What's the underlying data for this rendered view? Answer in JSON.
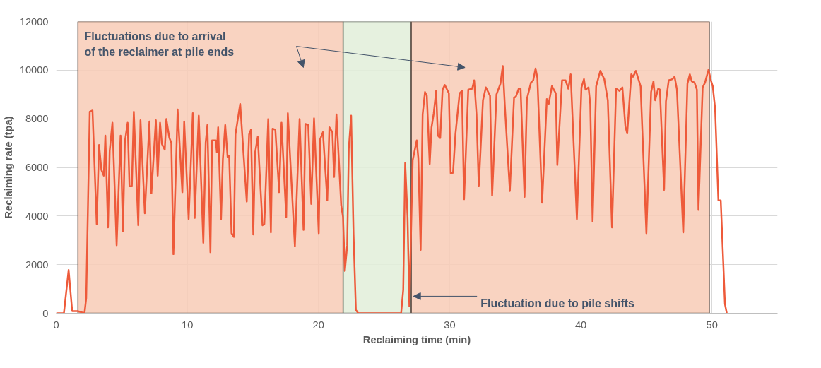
{
  "chart_data": {
    "type": "line",
    "xlabel": "Reclaiming time (min)",
    "ylabel": "Reclaiming rate (tpa)",
    "xlim": [
      0,
      55
    ],
    "xticks": [
      0,
      10,
      20,
      30,
      40,
      50
    ],
    "ylim": [
      0,
      12000
    ],
    "yticks": [
      0,
      2000,
      4000,
      6000,
      8000,
      10000,
      12000
    ],
    "grid": true,
    "line_style": "solid",
    "bands": [
      {
        "axis": "x",
        "from": 1.66,
        "to": 21.88,
        "color": "#f8cbb6"
      },
      {
        "axis": "x",
        "from": 21.88,
        "to": 27.05,
        "color": "#e2efd9"
      },
      {
        "axis": "x",
        "from": 27.08,
        "to": 49.8,
        "color": "#f8cbb6"
      }
    ],
    "annotations": [
      "Fluctuations due to arrival\nof the reclaimer at pile ends",
      {
        "text": "Fluctuation due to pile shifts",
        "x": 27.24,
        "y": 700
      }
    ],
    "series": [
      {
        "color": "#ee5a3a",
        "x": [
          0,
          0.59,
          0.95,
          1.22,
          1.63,
          2.16,
          2.29,
          2.56,
          2.77,
          3.09,
          3.27,
          3.45,
          3.63,
          3.75,
          3.95,
          4.08,
          4.29,
          4.61,
          4.91,
          5.09,
          5.24,
          5.45,
          5.59,
          5.77,
          5.92,
          6.26,
          6.43,
          6.76,
          7.11,
          7.26,
          7.6,
          7.74,
          7.92,
          8.06,
          8.28,
          8.4,
          8.63,
          8.78,
          8.94,
          9.26,
          9.62,
          9.76,
          10.1,
          10.42,
          10.56,
          10.87,
          11.22,
          11.4,
          11.53,
          11.76,
          11.89,
          12.17,
          12.25,
          12.35,
          12.57,
          12.71,
          12.89,
          13.07,
          13.19,
          13.37,
          13.55,
          13.67,
          14.03,
          14.53,
          14.71,
          14.85,
          15.03,
          15.16,
          15.37,
          15.73,
          15.87,
          16.17,
          16.37,
          16.5,
          16.71,
          17.0,
          17.18,
          17.54,
          17.66,
          18.2,
          18.56,
          18.86,
          19.0,
          19.22,
          19.45,
          19.66,
          20.02,
          20.13,
          20.34,
          20.67,
          20.83,
          21.06,
          21.19,
          21.37,
          21.73,
          21.87,
          22.01,
          22.19,
          22.31,
          22.49,
          22.67,
          22.85,
          23.03,
          26.3,
          26.46,
          26.61,
          26.79,
          26.93,
          27.18,
          27.49,
          27.61,
          27.79,
          27.94,
          28.12,
          28.26,
          28.48,
          28.62,
          28.79,
          28.97,
          29.1,
          29.28,
          29.46,
          29.63,
          29.94,
          30.08,
          30.26,
          30.44,
          30.76,
          30.94,
          31.1,
          31.42,
          31.72,
          31.87,
          32.05,
          32.22,
          32.54,
          32.76,
          33.08,
          33.24,
          33.57,
          33.87,
          34.05,
          34.2,
          34.59,
          34.91,
          35.05,
          35.27,
          35.41,
          35.71,
          35.89,
          36.2,
          36.37,
          36.55,
          36.69,
          37.05,
          37.41,
          37.55,
          37.8,
          38.09,
          38.21,
          38.57,
          38.84,
          39.05,
          39.23,
          39.7,
          40.05,
          40.24,
          40.36,
          40.59,
          40.72,
          40.9,
          41.17,
          41.49,
          41.79,
          42.06,
          42.38,
          42.69,
          42.95,
          43.17,
          43.4,
          43.54,
          43.85,
          43.99,
          44.2,
          44.56,
          45.0,
          45.36,
          45.54,
          45.67,
          45.9,
          46.03,
          46.35,
          46.49,
          46.7,
          46.97,
          47.15,
          47.33,
          47.81,
          48.13,
          48.31,
          48.46,
          48.67,
          48.85,
          48.97,
          49.29,
          49.47,
          49.74,
          49.92,
          50.06,
          50.24,
          50.49,
          50.67,
          50.99,
          51.13
        ],
        "values": [
          0,
          0,
          1780,
          90,
          90,
          0,
          620,
          8290,
          8340,
          3670,
          6920,
          5900,
          5660,
          7310,
          3530,
          6680,
          7840,
          2800,
          7310,
          3380,
          7060,
          7840,
          5220,
          5220,
          8290,
          3620,
          7940,
          4110,
          7890,
          4930,
          7940,
          5660,
          7840,
          6970,
          6730,
          7990,
          7210,
          7020,
          2430,
          8380,
          4980,
          7890,
          3870,
          8230,
          3920,
          8130,
          2900,
          7020,
          7740,
          2510,
          7110,
          7110,
          6630,
          7650,
          3870,
          6340,
          7740,
          6430,
          6480,
          3290,
          3140,
          7360,
          8610,
          4590,
          7360,
          7550,
          3240,
          6580,
          7260,
          3620,
          3670,
          7990,
          3330,
          7590,
          7550,
          4980,
          7840,
          3960,
          8230,
          2750,
          7990,
          3430,
          7790,
          7740,
          4500,
          8020,
          3290,
          7160,
          7450,
          4640,
          7650,
          7450,
          5610,
          8180,
          4450,
          3960,
          1740,
          2800,
          6770,
          8130,
          3290,
          140,
          0,
          0,
          960,
          6190,
          3960,
          280,
          6290,
          7110,
          6390,
          2610,
          8180,
          9100,
          8950,
          6140,
          7650,
          8230,
          9150,
          7310,
          7210,
          9200,
          9390,
          9050,
          5760,
          5780,
          7360,
          9050,
          9150,
          4690,
          9200,
          9240,
          9580,
          8180,
          5220,
          8760,
          9290,
          8950,
          4840,
          9000,
          9440,
          10170,
          8610,
          5030,
          8860,
          8910,
          9240,
          9240,
          4790,
          8810,
          9490,
          9580,
          10070,
          9680,
          4550,
          8810,
          8610,
          9340,
          9050,
          6100,
          9580,
          9580,
          9240,
          9830,
          3870,
          9290,
          9630,
          9200,
          9290,
          8610,
          3770,
          9340,
          9970,
          9630,
          8760,
          3530,
          9240,
          9150,
          9290,
          7690,
          7400,
          9830,
          9730,
          9970,
          9340,
          3290,
          9100,
          9540,
          8760,
          9240,
          9200,
          5080,
          8710,
          9580,
          9630,
          9730,
          9200,
          3330,
          9440,
          9830,
          9540,
          9490,
          9200,
          4250,
          9290,
          9490,
          10020,
          9580,
          9340,
          8420,
          4640,
          4640,
          380,
          0
        ]
      }
    ]
  }
}
